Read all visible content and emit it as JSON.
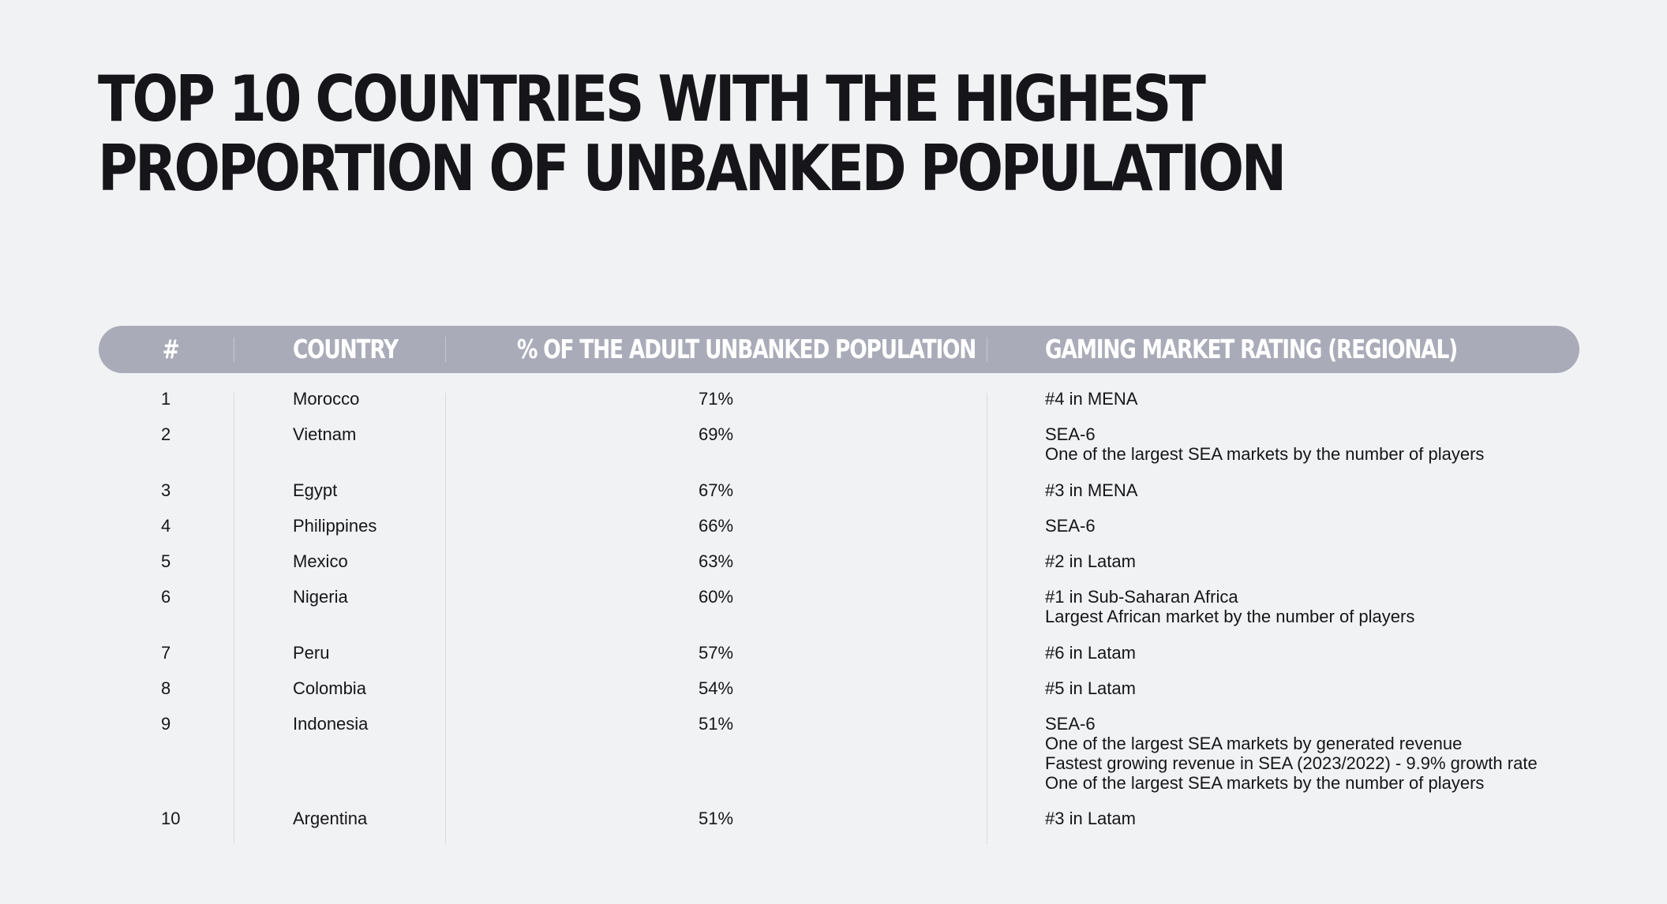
{
  "title": {
    "line1": "TOP 10 COUNTRIES WITH THE HIGHEST",
    "line2": "PROPORTION OF UNBANKED POPULATION"
  },
  "table": {
    "headers": {
      "num": "#",
      "country": "COUNTRY",
      "percent": "% OF THE ADULT UNBANKED POPULATION",
      "rating": "GAMING MARKET RATING (REGIONAL)"
    },
    "rows": [
      {
        "num": "1",
        "country": "Morocco",
        "percent": "71%",
        "rating": [
          "#4 in MENA"
        ]
      },
      {
        "num": "2",
        "country": "Vietnam",
        "percent": "69%",
        "rating": [
          "SEA-6",
          "One of the largest SEA markets by the number of players"
        ]
      },
      {
        "num": "3",
        "country": "Egypt",
        "percent": "67%",
        "rating": [
          "#3 in MENA"
        ]
      },
      {
        "num": "4",
        "country": "Philippines",
        "percent": "66%",
        "rating": [
          "SEA-6"
        ]
      },
      {
        "num": "5",
        "country": "Mexico",
        "percent": "63%",
        "rating": [
          "#2 in Latam"
        ]
      },
      {
        "num": "6",
        "country": "Nigeria",
        "percent": "60%",
        "rating": [
          "#1 in Sub-Saharan Africa",
          "Largest African market by the number of players"
        ]
      },
      {
        "num": "7",
        "country": "Peru",
        "percent": "57%",
        "rating": [
          "#6 in Latam"
        ]
      },
      {
        "num": "8",
        "country": "Colombia",
        "percent": "54%",
        "rating": [
          "#5 in Latam"
        ]
      },
      {
        "num": "9",
        "country": "Indonesia",
        "percent": "51%",
        "rating": [
          "SEA-6",
          "One of the largest SEA markets by generated revenue",
          "Fastest growing revenue in SEA (2023/2022) - 9.9% growth rate",
          "One of the largest SEA markets by the number of players"
        ]
      },
      {
        "num": "10",
        "country": "Argentina",
        "percent": "51%",
        "rating": [
          "#3 in Latam"
        ]
      }
    ]
  }
}
